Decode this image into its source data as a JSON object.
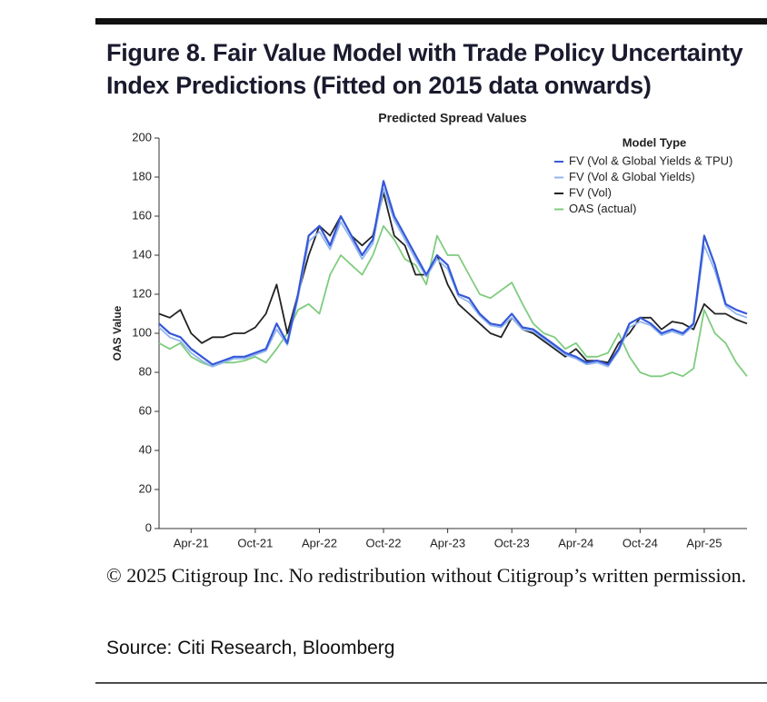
{
  "title": [
    "Figure 8. Fair Value Model with Trade Policy Uncertainty",
    "Index Predictions (Fitted on 2015 data onwards)"
  ],
  "chart_data": {
    "type": "line",
    "title": "Predicted Spread Values",
    "y_label": "OAS Value",
    "legend_title": "Model Type",
    "legend": "upper right",
    "x": [
      "2021-01",
      "2021-02",
      "2021-03",
      "2021-04",
      "2021-05",
      "2021-06",
      "2021-07",
      "2021-08",
      "2021-09",
      "2021-10",
      "2021-11",
      "2021-12",
      "2022-01",
      "2022-02",
      "2022-03",
      "2022-04",
      "2022-05",
      "2022-06",
      "2022-07",
      "2022-08",
      "2022-09",
      "2022-10",
      "2022-11",
      "2022-12",
      "2023-01",
      "2023-02",
      "2023-03",
      "2023-04",
      "2023-05",
      "2023-06",
      "2023-07",
      "2023-08",
      "2023-09",
      "2023-10",
      "2023-11",
      "2023-12",
      "2024-01",
      "2024-02",
      "2024-03",
      "2024-04",
      "2024-05",
      "2024-06",
      "2024-07",
      "2024-08",
      "2024-09",
      "2024-10",
      "2024-11",
      "2024-12",
      "2025-01",
      "2025-02",
      "2025-03",
      "2025-04",
      "2025-05",
      "2025-06",
      "2025-07",
      "2025-08"
    ],
    "xlim": [
      "2021-01",
      "2025-08"
    ],
    "xticks": [
      {
        "value": "2021-04",
        "label": "Apr-21"
      },
      {
        "value": "2021-10",
        "label": "Oct-21"
      },
      {
        "value": "2022-04",
        "label": "Apr-22"
      },
      {
        "value": "2022-10",
        "label": "Oct-22"
      },
      {
        "value": "2023-04",
        "label": "Apr-23"
      },
      {
        "value": "2023-10",
        "label": "Oct-23"
      },
      {
        "value": "2024-04",
        "label": "Apr-24"
      },
      {
        "value": "2024-10",
        "label": "Oct-24"
      },
      {
        "value": "2025-04",
        "label": "Apr-25"
      }
    ],
    "ylim": [
      0,
      200
    ],
    "yticks": [
      0,
      20,
      40,
      60,
      80,
      100,
      120,
      140,
      160,
      180,
      200
    ],
    "series": [
      {
        "name": "FV (Vol & Global Yields & TPU)",
        "color": "#3558d8",
        "values": [
          105,
          100,
          98,
          92,
          88,
          84,
          86,
          88,
          88,
          90,
          92,
          105,
          95,
          120,
          150,
          155,
          145,
          160,
          150,
          140,
          148,
          178,
          160,
          150,
          140,
          130,
          140,
          135,
          120,
          118,
          110,
          105,
          104,
          110,
          103,
          102,
          98,
          94,
          90,
          88,
          85,
          86,
          84,
          92,
          105,
          108,
          105,
          100,
          102,
          100,
          105,
          150,
          135,
          115,
          112,
          110
        ]
      },
      {
        "name": "FV (Vol & Global Yields)",
        "color": "#93b6ee",
        "values": [
          103,
          98,
          96,
          90,
          86,
          83,
          85,
          87,
          87,
          89,
          91,
          102,
          94,
          118,
          147,
          152,
          143,
          157,
          148,
          138,
          146,
          174,
          158,
          148,
          138,
          129,
          138,
          133,
          119,
          116,
          109,
          104,
          103,
          108,
          102,
          101,
          97,
          93,
          89,
          87,
          84,
          85,
          83,
          91,
          103,
          106,
          104,
          99,
          101,
          99,
          104,
          145,
          132,
          114,
          110,
          108
        ]
      },
      {
        "name": "FV (Vol)",
        "color": "#222222",
        "values": [
          110,
          108,
          112,
          100,
          95,
          98,
          98,
          100,
          100,
          103,
          110,
          125,
          100,
          120,
          140,
          155,
          150,
          160,
          150,
          145,
          150,
          172,
          150,
          145,
          130,
          130,
          140,
          125,
          115,
          110,
          105,
          100,
          98,
          108,
          102,
          100,
          96,
          92,
          88,
          92,
          86,
          86,
          85,
          95,
          100,
          108,
          108,
          102,
          106,
          105,
          102,
          115,
          110,
          110,
          107,
          105
        ]
      },
      {
        "name": "OAS (actual)",
        "color": "#7fcc7f",
        "values": [
          95,
          92,
          95,
          88,
          85,
          83,
          85,
          85,
          86,
          88,
          85,
          92,
          100,
          112,
          115,
          110,
          130,
          140,
          135,
          130,
          140,
          155,
          148,
          138,
          135,
          125,
          150,
          140,
          140,
          130,
          120,
          118,
          122,
          126,
          115,
          105,
          100,
          98,
          92,
          95,
          88,
          88,
          90,
          100,
          88,
          80,
          78,
          78,
          80,
          78,
          82,
          112,
          100,
          95,
          85,
          78
        ]
      }
    ]
  },
  "footer": {
    "copyright": "© 2025 Citigroup Inc. No redistribution without Citigroup’s written permission.",
    "source": "Source: Citi Research, Bloomberg"
  }
}
